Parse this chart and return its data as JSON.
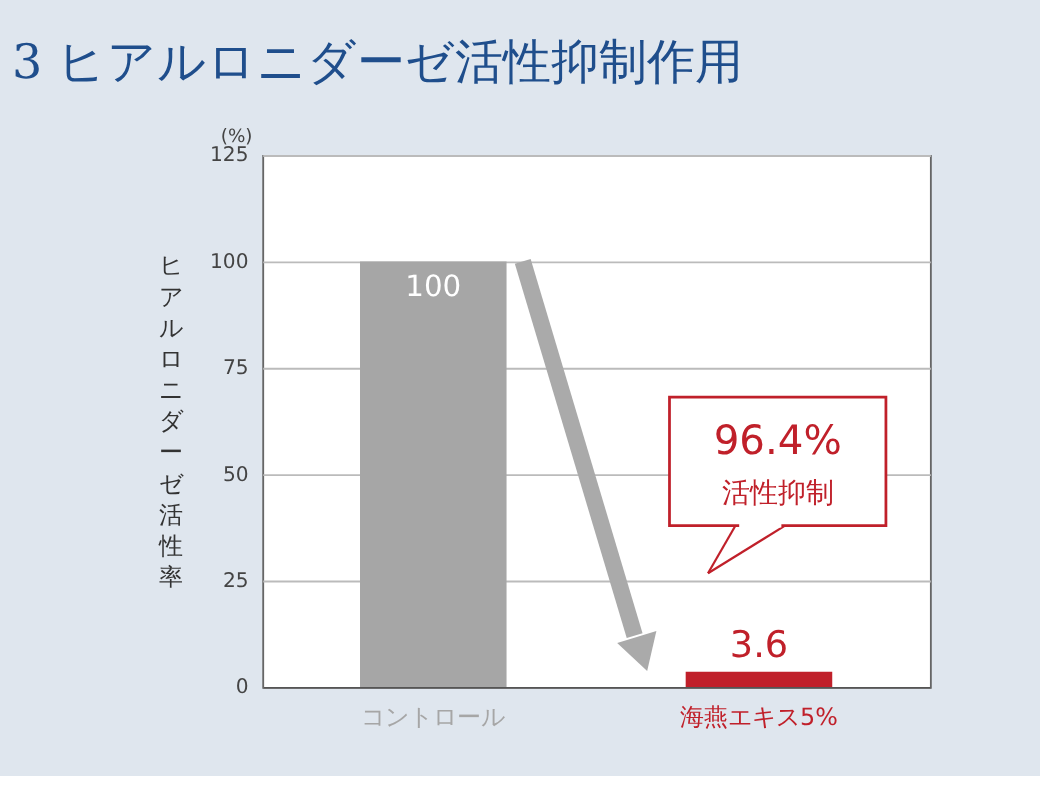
{
  "chart_data": {
    "type": "bar",
    "title": "3 ヒアルロニダーゼ活性抑制作用",
    "ylabel": "ヒアルロニダーゼ活性率",
    "categories": [
      "コントロール",
      "海燕エキス5%"
    ],
    "values": [
      100,
      3.6
    ],
    "colors": [
      "#a6a6a6",
      "#c0202a"
    ],
    "ylim": [
      0,
      125
    ],
    "yticks": [
      0,
      25,
      50,
      75,
      100,
      125
    ],
    "grid": "y",
    "data_labels": true,
    "annotations": [
      "(%)",
      "96.4%",
      "活性抑制"
    ]
  }
}
